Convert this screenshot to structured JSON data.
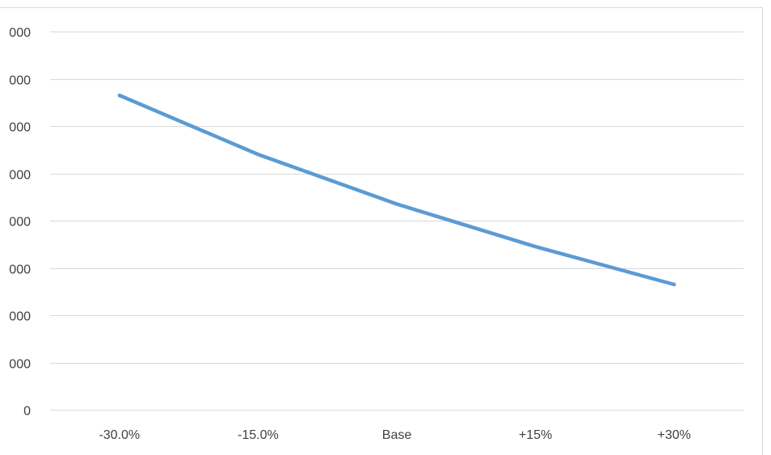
{
  "chart_data": {
    "type": "line",
    "categories": [
      "-30.0%",
      "-15.0%",
      "Base",
      "+15%",
      "+30%"
    ],
    "series": [
      {
        "values": [
          6.65,
          5.4,
          4.35,
          3.45,
          2.65
        ]
      }
    ],
    "y_tick_labels": [
      "0",
      "000",
      "000",
      "000",
      "000",
      "000",
      "000",
      "000",
      "000"
    ],
    "ylim": [
      0,
      8
    ],
    "grid": true,
    "legend": "none",
    "colors": {
      "line": "#5b9bd5",
      "grid": "#d9d9d9",
      "frame": "#d9d9d9",
      "text": "#404040"
    }
  }
}
